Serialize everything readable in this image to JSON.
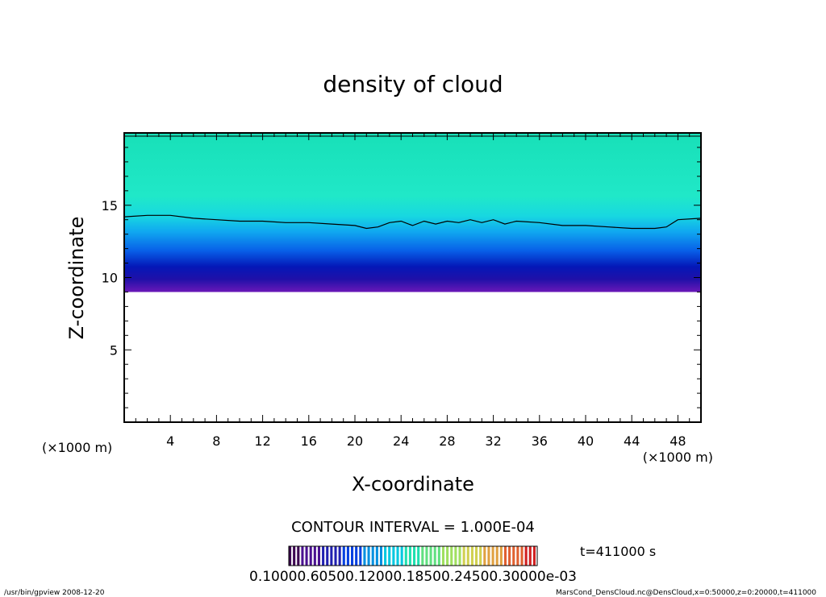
{
  "chart_data": {
    "type": "heatmap",
    "title": "density of cloud",
    "xlabel": "X-coordinate",
    "ylabel": "Z-coordinate",
    "x_unit_label_left": "(×1000 m)",
    "x_unit_label_right": "(×1000 m)",
    "xlim": [
      0,
      50
    ],
    "ylim": [
      0,
      20
    ],
    "x_ticks": [
      4,
      8,
      12,
      16,
      20,
      24,
      28,
      32,
      36,
      40,
      44,
      48
    ],
    "x_tick_labels": [
      "4",
      "8",
      "12",
      "16",
      "20",
      "24",
      "28",
      "32",
      "36",
      "40",
      "44",
      "48"
    ],
    "y_ticks": [
      5,
      10,
      15
    ],
    "y_tick_labels": [
      "5",
      "10",
      "15"
    ],
    "cloud_base_z": 9.0,
    "contour_z_profile": [
      [
        0,
        14.2
      ],
      [
        2,
        14.3
      ],
      [
        4,
        14.3
      ],
      [
        6,
        14.1
      ],
      [
        8,
        14.0
      ],
      [
        10,
        13.9
      ],
      [
        12,
        13.9
      ],
      [
        14,
        13.8
      ],
      [
        16,
        13.8
      ],
      [
        18,
        13.7
      ],
      [
        20,
        13.6
      ],
      [
        21,
        13.4
      ],
      [
        22,
        13.5
      ],
      [
        23,
        13.8
      ],
      [
        24,
        13.9
      ],
      [
        25,
        13.6
      ],
      [
        26,
        13.9
      ],
      [
        27,
        13.7
      ],
      [
        28,
        13.9
      ],
      [
        29,
        13.8
      ],
      [
        30,
        14.0
      ],
      [
        31,
        13.8
      ],
      [
        32,
        14.0
      ],
      [
        33,
        13.7
      ],
      [
        34,
        13.9
      ],
      [
        36,
        13.8
      ],
      [
        38,
        13.6
      ],
      [
        40,
        13.6
      ],
      [
        42,
        13.5
      ],
      [
        44,
        13.4
      ],
      [
        46,
        13.4
      ],
      [
        47,
        13.5
      ],
      [
        48,
        14.0
      ],
      [
        50,
        14.1
      ]
    ],
    "contour_interval_text": "CONTOUR INTERVAL = 1.000E-04",
    "time_text": "t=411000 s",
    "colorbar_labels_text": "0.10000.60500.12000.18500.24500.30000e-03",
    "colorbar_colors": [
      "#3b0050",
      "#4a1090",
      "#2020b0",
      "#0040e0",
      "#0090e0",
      "#00c8e0",
      "#20e0b0",
      "#60e080",
      "#a0e060",
      "#d0d050",
      "#e0a040",
      "#e06030",
      "#d02020"
    ]
  },
  "footer": {
    "left": "/usr/bin/gpview   2008-12-20",
    "right": "MarsCond_DensCloud.nc@DensCloud,x=0:50000,z=0:20000,t=411000"
  }
}
